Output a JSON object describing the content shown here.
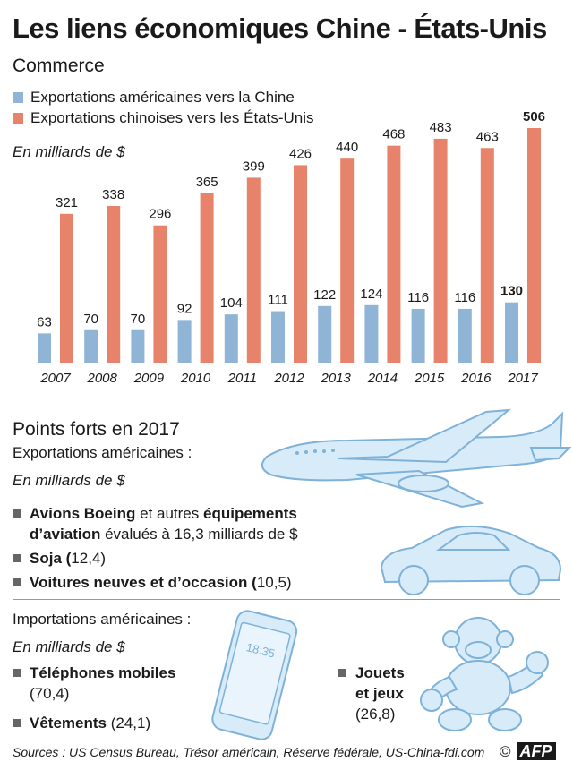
{
  "title": "Les liens économiques Chine - États-Unis",
  "commerce": {
    "heading": "Commerce",
    "legend": [
      {
        "label": "Exportations américaines vers la Chine",
        "color": "#8fb4d6"
      },
      {
        "label": "Exportations chinoises vers les États-Unis",
        "color": "#e8836b"
      }
    ],
    "unit": "En milliards de $"
  },
  "chart_data": {
    "type": "bar",
    "title": "Commerce",
    "ylabel": "En milliards de $",
    "categories": [
      "2007",
      "2008",
      "2009",
      "2010",
      "2011",
      "2012",
      "2013",
      "2014",
      "2015",
      "2016",
      "2017"
    ],
    "series": [
      {
        "name": "Exportations américaines vers la Chine",
        "values": [
          63,
          70,
          70,
          92,
          104,
          111,
          122,
          124,
          116,
          116,
          130
        ]
      },
      {
        "name": "Exportations chinoises vers les États-Unis",
        "values": [
          321,
          338,
          296,
          365,
          399,
          426,
          440,
          468,
          483,
          463,
          506
        ]
      }
    ],
    "ylim": [
      0,
      530
    ],
    "highlight_category": "2017"
  },
  "points_forts": {
    "heading": "Points forts en 2017",
    "exports": {
      "heading": "Exportations américaines :",
      "unit": "En milliards de $",
      "item1": {
        "b1": "Avions Boeing",
        "t1": " et autres ",
        "b2": "équipements d’aviation",
        "t2": " évalués à 16,3 milliards de $"
      },
      "item2": {
        "b1": "Soja (",
        "t1": "12,4)"
      },
      "item3": {
        "b1": "Voitures neuves et d’occasion (",
        "t1": "10,5)"
      }
    },
    "imports": {
      "heading": "Importations américaines :",
      "unit": "En milliards de $",
      "phones": {
        "label": "Téléphones mobiles",
        "value": "(70,4)"
      },
      "clothes": {
        "label": "Vêtements",
        "value": "(24,1)"
      },
      "toys": {
        "label1": "Jouets",
        "label2": "et jeux",
        "value": "(26,8)"
      },
      "phone_time": "18:35"
    }
  },
  "sources": "Sources : US Census Bureau, Trésor américain, Réserve fédérale, US-China-fdi.com",
  "credit": {
    "copyright": "©",
    "logo": "AFP"
  }
}
